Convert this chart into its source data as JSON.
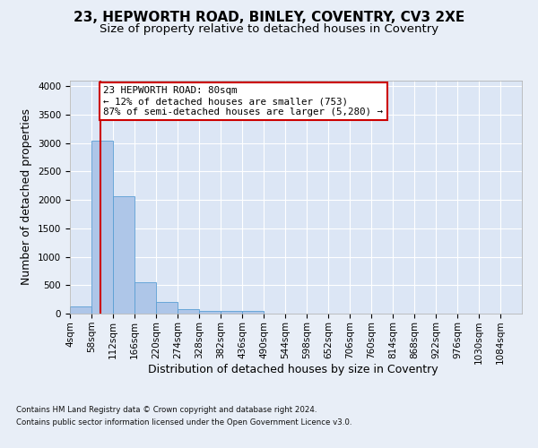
{
  "title_line1": "23, HEPWORTH ROAD, BINLEY, COVENTRY, CV3 2XE",
  "title_line2": "Size of property relative to detached houses in Coventry",
  "xlabel": "Distribution of detached houses by size in Coventry",
  "ylabel": "Number of detached properties",
  "footer_line1": "Contains HM Land Registry data © Crown copyright and database right 2024.",
  "footer_line2": "Contains public sector information licensed under the Open Government Licence v3.0.",
  "bar_left_edges": [
    4,
    58,
    112,
    166,
    220,
    274,
    328,
    382,
    436,
    490,
    544,
    598,
    652,
    706,
    760,
    814,
    868,
    922,
    976,
    1030
  ],
  "bar_heights": [
    130,
    3040,
    2060,
    550,
    200,
    75,
    55,
    40,
    45,
    0,
    0,
    0,
    0,
    0,
    0,
    0,
    0,
    0,
    0,
    0
  ],
  "bin_width": 54,
  "bar_color": "#aec6e8",
  "bar_edge_color": "#5a9fd4",
  "property_size": 80,
  "annotation_line1": "23 HEPWORTH ROAD: 80sqm",
  "annotation_line2": "← 12% of detached houses are smaller (753)",
  "annotation_line3": "87% of semi-detached houses are larger (5,280) →",
  "annotation_box_edgecolor": "#cc0000",
  "vline_color": "#cc0000",
  "ylim_max": 4100,
  "bg_color": "#e8eef7",
  "plot_bg_color": "#dce6f5",
  "grid_color": "#ffffff",
  "x_tick_labels": [
    "4sqm",
    "58sqm",
    "112sqm",
    "166sqm",
    "220sqm",
    "274sqm",
    "328sqm",
    "382sqm",
    "436sqm",
    "490sqm",
    "544sqm",
    "598sqm",
    "652sqm",
    "706sqm",
    "760sqm",
    "814sqm",
    "868sqm",
    "922sqm",
    "976sqm",
    "1030sqm",
    "1084sqm"
  ],
  "title_fontsize": 11,
  "subtitle_fontsize": 9.5,
  "axis_label_fontsize": 9,
  "tick_fontsize": 7.5,
  "footer_fontsize": 6.2,
  "annotation_fontsize": 7.8
}
